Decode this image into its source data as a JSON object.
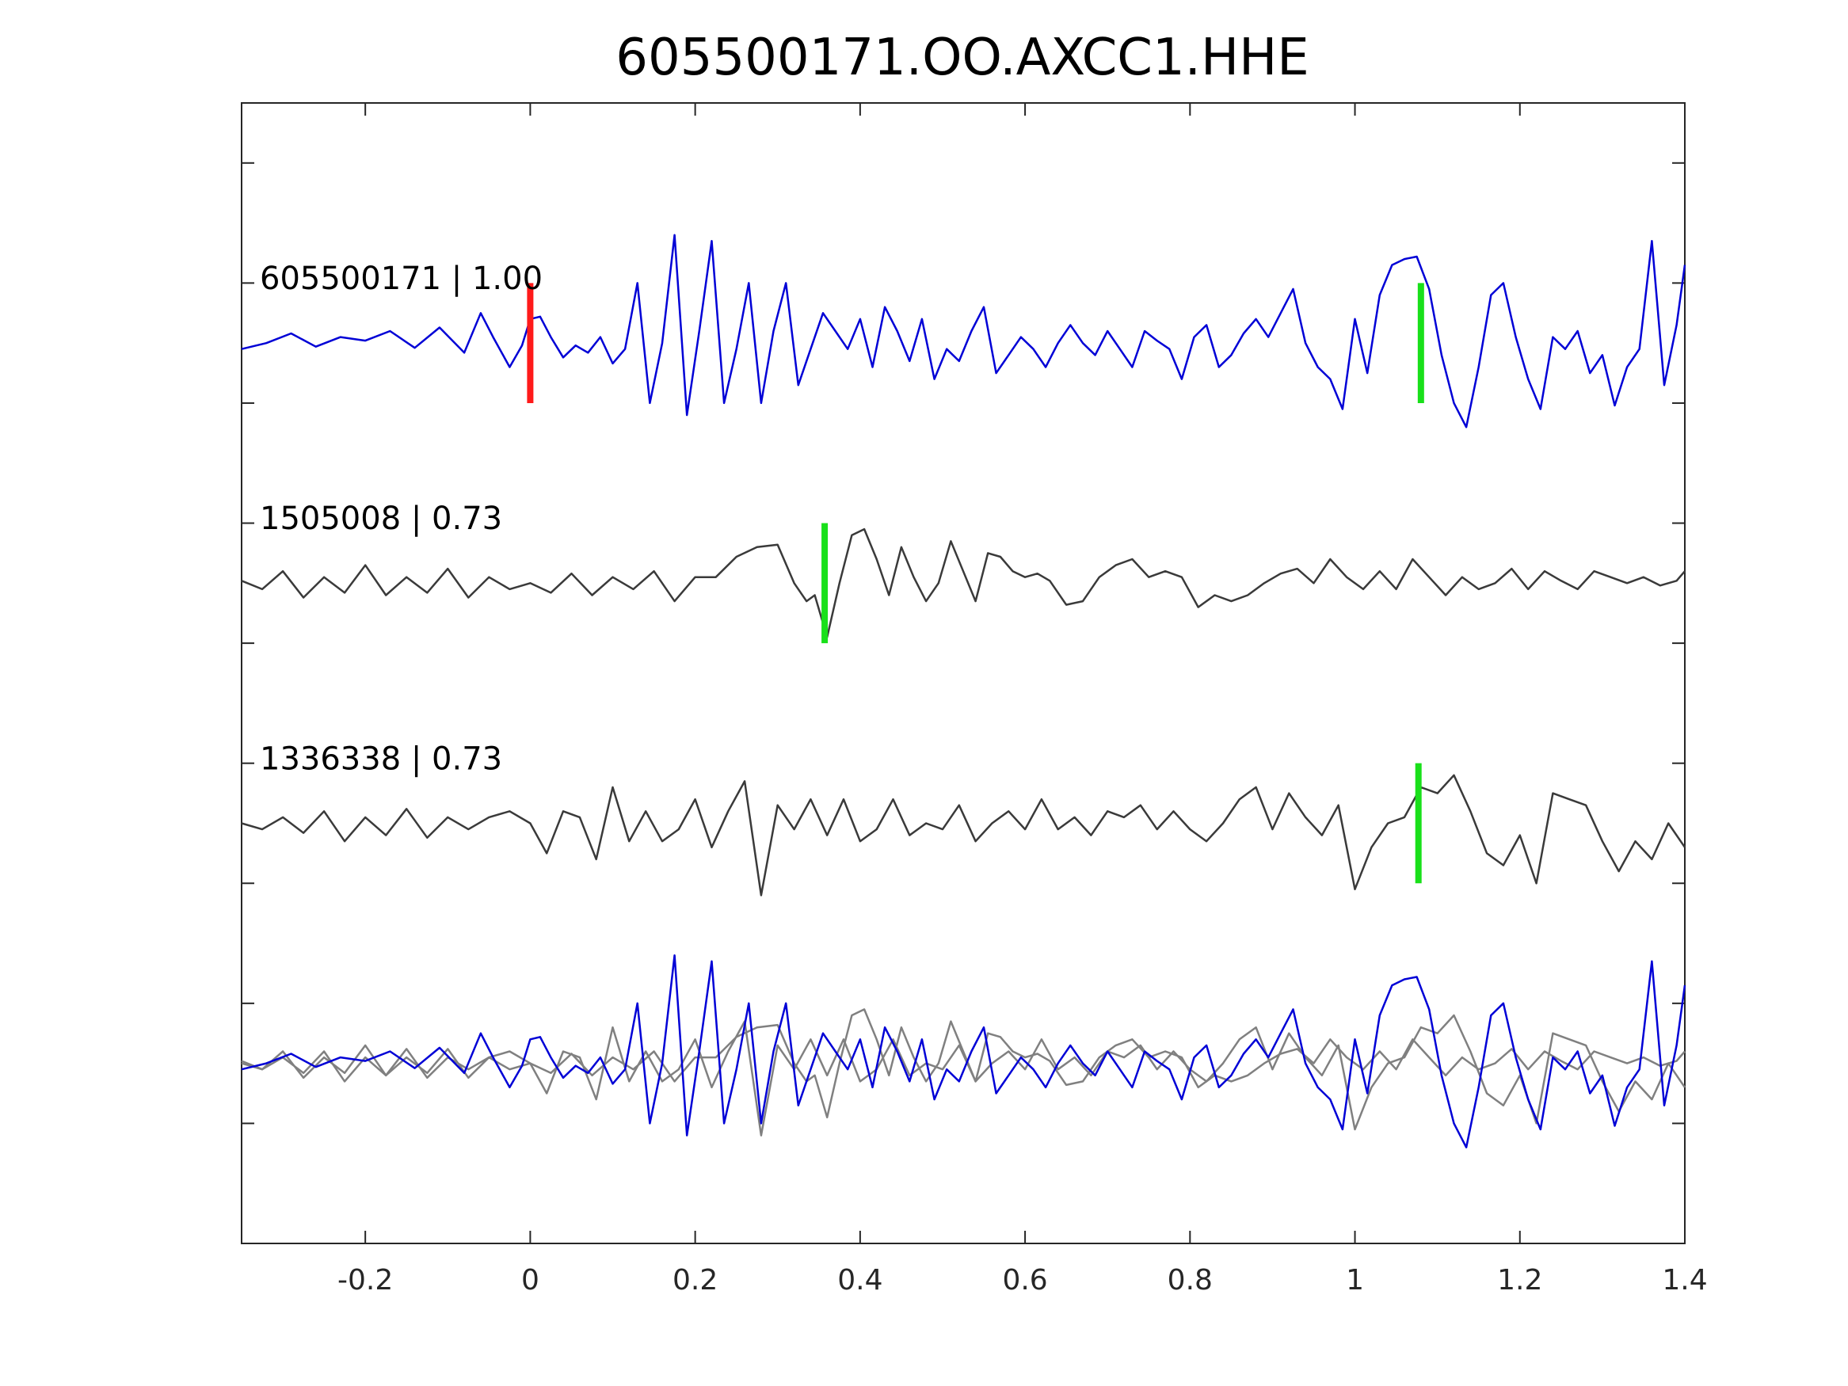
{
  "chart_data": {
    "type": "line",
    "title": "605500171.OO.AXCC1.HHE",
    "xlabel": "",
    "ylabel": "",
    "xlim": [
      -0.35,
      1.4
    ],
    "x_ticks": [
      "-0.2",
      "0",
      "0.2",
      "0.4",
      "0.6",
      "0.8",
      "1",
      "1.2",
      "1.4"
    ],
    "x_tick_values": [
      -0.2,
      0,
      0.2,
      0.4,
      0.6,
      0.8,
      1,
      1.2,
      1.4
    ],
    "ylim": [
      0,
      9.5
    ],
    "y_tick_values": [
      1,
      2,
      3,
      4,
      5,
      6,
      7,
      8,
      9
    ],
    "y_tick_labels_shown": false,
    "grid": false,
    "legend": "none",
    "colors": {
      "primary": "#0000d6",
      "secondary": "#3a3a3a",
      "overlay": "#808080",
      "pick_red": "#ff1a1a",
      "pick_green": "#19e01a",
      "axes": "#262626"
    },
    "trace_labels": [
      {
        "text": "605500171 | 1.00",
        "trace": 0
      },
      {
        "text": "1505008 | 0.73",
        "trace": 1
      },
      {
        "text": "1336338 | 0.73",
        "trace": 2
      }
    ],
    "traces": [
      {
        "id": "605500171",
        "color": "primary",
        "baseline": 7.5,
        "x": [
          -0.35,
          -0.32,
          -0.29,
          -0.26,
          -0.23,
          -0.2,
          -0.17,
          -0.14,
          -0.11,
          -0.08,
          -0.06,
          -0.045,
          -0.025,
          -0.01,
          0.0,
          0.012,
          0.025,
          0.04,
          0.055,
          0.07,
          0.085,
          0.1,
          0.115,
          0.13,
          0.145,
          0.16,
          0.175,
          0.19,
          0.205,
          0.22,
          0.235,
          0.25,
          0.265,
          0.28,
          0.295,
          0.31,
          0.325,
          0.34,
          0.355,
          0.37,
          0.385,
          0.4,
          0.415,
          0.43,
          0.445,
          0.46,
          0.475,
          0.49,
          0.505,
          0.52,
          0.535,
          0.55,
          0.565,
          0.58,
          0.595,
          0.61,
          0.625,
          0.64,
          0.655,
          0.67,
          0.685,
          0.7,
          0.715,
          0.73,
          0.745,
          0.76,
          0.775,
          0.79,
          0.805,
          0.82,
          0.835,
          0.85,
          0.865,
          0.88,
          0.895,
          0.91,
          0.925,
          0.94,
          0.955,
          0.97,
          0.985,
          1.0,
          1.015,
          1.03,
          1.045,
          1.06,
          1.075,
          1.09,
          1.105,
          1.12,
          1.135,
          1.15,
          1.165,
          1.18,
          1.195,
          1.21,
          1.225,
          1.24,
          1.255,
          1.27,
          1.285,
          1.3,
          1.315,
          1.33,
          1.345,
          1.36,
          1.375,
          1.39,
          1.4
        ],
        "y": [
          7.45,
          7.5,
          7.58,
          7.47,
          7.55,
          7.52,
          7.6,
          7.46,
          7.63,
          7.42,
          7.75,
          7.55,
          7.3,
          7.48,
          7.7,
          7.72,
          7.55,
          7.38,
          7.48,
          7.42,
          7.55,
          7.33,
          7.45,
          8.0,
          7.0,
          7.5,
          8.4,
          6.9,
          7.6,
          8.35,
          7.0,
          7.45,
          8.0,
          7.0,
          7.6,
          8.0,
          7.15,
          7.45,
          7.75,
          7.6,
          7.45,
          7.7,
          7.3,
          7.8,
          7.6,
          7.35,
          7.7,
          7.2,
          7.45,
          7.35,
          7.6,
          7.8,
          7.25,
          7.4,
          7.55,
          7.45,
          7.3,
          7.5,
          7.65,
          7.5,
          7.4,
          7.6,
          7.45,
          7.3,
          7.6,
          7.52,
          7.45,
          7.2,
          7.55,
          7.65,
          7.3,
          7.4,
          7.58,
          7.7,
          7.55,
          7.75,
          7.95,
          7.5,
          7.3,
          7.2,
          6.95,
          7.7,
          7.25,
          7.9,
          8.15,
          8.2,
          8.22,
          7.95,
          7.4,
          7.0,
          6.8,
          7.3,
          7.9,
          8.0,
          7.55,
          7.2,
          6.95,
          7.55,
          7.45,
          7.6,
          7.25,
          7.4,
          6.98,
          7.3,
          7.45,
          8.35,
          7.15,
          7.65,
          8.15
        ]
      },
      {
        "id": "1505008",
        "color": "secondary",
        "baseline": 5.5,
        "x": [
          -0.35,
          -0.325,
          -0.3,
          -0.275,
          -0.25,
          -0.225,
          -0.2,
          -0.175,
          -0.15,
          -0.125,
          -0.1,
          -0.075,
          -0.05,
          -0.025,
          0.0,
          0.025,
          0.05,
          0.075,
          0.1,
          0.125,
          0.15,
          0.175,
          0.2,
          0.225,
          0.25,
          0.275,
          0.3,
          0.32,
          0.335,
          0.345,
          0.36,
          0.375,
          0.39,
          0.405,
          0.42,
          0.435,
          0.45,
          0.465,
          0.48,
          0.495,
          0.51,
          0.525,
          0.54,
          0.555,
          0.57,
          0.585,
          0.6,
          0.615,
          0.63,
          0.65,
          0.67,
          0.69,
          0.71,
          0.73,
          0.75,
          0.77,
          0.79,
          0.81,
          0.83,
          0.85,
          0.87,
          0.89,
          0.91,
          0.93,
          0.95,
          0.97,
          0.99,
          1.01,
          1.03,
          1.05,
          1.07,
          1.09,
          1.11,
          1.13,
          1.15,
          1.17,
          1.19,
          1.21,
          1.23,
          1.25,
          1.27,
          1.29,
          1.31,
          1.33,
          1.35,
          1.37,
          1.39,
          1.4
        ],
        "y": [
          5.52,
          5.45,
          5.6,
          5.38,
          5.55,
          5.42,
          5.65,
          5.4,
          5.55,
          5.42,
          5.62,
          5.38,
          5.55,
          5.45,
          5.5,
          5.42,
          5.58,
          5.4,
          5.55,
          5.45,
          5.6,
          5.35,
          5.55,
          5.55,
          5.72,
          5.8,
          5.82,
          5.5,
          5.35,
          5.4,
          5.05,
          5.5,
          5.9,
          5.95,
          5.7,
          5.4,
          5.8,
          5.55,
          5.35,
          5.5,
          5.85,
          5.6,
          5.35,
          5.75,
          5.72,
          5.6,
          5.55,
          5.58,
          5.52,
          5.32,
          5.35,
          5.55,
          5.65,
          5.7,
          5.55,
          5.6,
          5.55,
          5.3,
          5.4,
          5.35,
          5.4,
          5.5,
          5.58,
          5.62,
          5.5,
          5.7,
          5.55,
          5.45,
          5.6,
          5.45,
          5.7,
          5.55,
          5.4,
          5.55,
          5.45,
          5.5,
          5.62,
          5.45,
          5.6,
          5.52,
          5.45,
          5.6,
          5.55,
          5.5,
          5.55,
          5.48,
          5.52,
          5.6
        ]
      },
      {
        "id": "1336338",
        "color": "secondary",
        "baseline": 3.5,
        "x": [
          -0.35,
          -0.325,
          -0.3,
          -0.275,
          -0.25,
          -0.225,
          -0.2,
          -0.175,
          -0.15,
          -0.125,
          -0.1,
          -0.075,
          -0.05,
          -0.025,
          0.0,
          0.02,
          0.04,
          0.06,
          0.08,
          0.1,
          0.12,
          0.14,
          0.16,
          0.18,
          0.2,
          0.22,
          0.24,
          0.26,
          0.28,
          0.3,
          0.32,
          0.34,
          0.36,
          0.38,
          0.4,
          0.42,
          0.44,
          0.46,
          0.48,
          0.5,
          0.52,
          0.54,
          0.56,
          0.58,
          0.6,
          0.62,
          0.64,
          0.66,
          0.68,
          0.7,
          0.72,
          0.74,
          0.76,
          0.78,
          0.8,
          0.82,
          0.84,
          0.86,
          0.88,
          0.9,
          0.92,
          0.94,
          0.96,
          0.98,
          1.0,
          1.02,
          1.04,
          1.06,
          1.08,
          1.1,
          1.12,
          1.14,
          1.16,
          1.18,
          1.2,
          1.22,
          1.24,
          1.26,
          1.28,
          1.3,
          1.32,
          1.34,
          1.36,
          1.38,
          1.4
        ],
        "y": [
          3.5,
          3.45,
          3.55,
          3.42,
          3.6,
          3.35,
          3.55,
          3.4,
          3.62,
          3.38,
          3.55,
          3.45,
          3.55,
          3.6,
          3.5,
          3.25,
          3.6,
          3.55,
          3.2,
          3.8,
          3.35,
          3.6,
          3.35,
          3.45,
          3.7,
          3.3,
          3.6,
          3.85,
          2.9,
          3.65,
          3.45,
          3.7,
          3.4,
          3.7,
          3.35,
          3.45,
          3.7,
          3.4,
          3.5,
          3.45,
          3.65,
          3.35,
          3.5,
          3.6,
          3.45,
          3.7,
          3.45,
          3.55,
          3.4,
          3.6,
          3.55,
          3.65,
          3.45,
          3.6,
          3.45,
          3.35,
          3.5,
          3.7,
          3.8,
          3.45,
          3.75,
          3.55,
          3.4,
          3.65,
          2.95,
          3.3,
          3.5,
          3.55,
          3.8,
          3.75,
          3.9,
          3.6,
          3.25,
          3.15,
          3.4,
          3.0,
          3.75,
          3.7,
          3.65,
          3.35,
          3.1,
          3.35,
          3.2,
          3.5,
          3.3
        ]
      }
    ],
    "overlay_baseline": 1.5,
    "picks": [
      {
        "trace": 0,
        "x": 0.0,
        "color": "pick_red",
        "y_range": [
          7.0,
          8.0
        ]
      },
      {
        "trace": 0,
        "x": 1.08,
        "color": "pick_green",
        "y_range": [
          7.0,
          8.0
        ]
      },
      {
        "trace": 1,
        "x": 0.357,
        "color": "pick_green",
        "y_range": [
          5.0,
          6.0
        ]
      },
      {
        "trace": 2,
        "x": 1.077,
        "color": "pick_green",
        "y_range": [
          3.0,
          4.0
        ]
      }
    ]
  }
}
